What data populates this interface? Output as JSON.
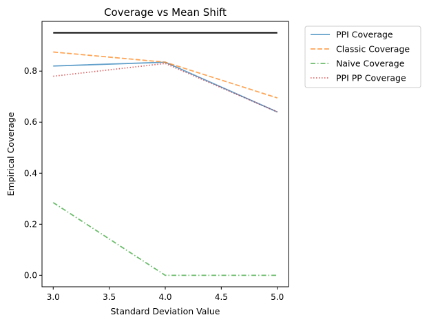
{
  "chart_data": {
    "type": "line",
    "title": "Coverage vs Mean Shift",
    "xlabel": "Standard Deviation Value",
    "ylabel": "Empirical Coverage",
    "x": [
      3.0,
      4.0,
      5.0
    ],
    "xlim": [
      2.9,
      5.1
    ],
    "ylim": [
      -0.045,
      0.995
    ],
    "xticks": [
      "3.0",
      "3.5",
      "4.0",
      "4.5",
      "5.0"
    ],
    "yticks": [
      "0.0",
      "0.2",
      "0.4",
      "0.6",
      "0.8"
    ],
    "grid": false,
    "legend_position": "outside-top-right",
    "reference_line": {
      "y": 0.95,
      "color": "#000000"
    },
    "series": [
      {
        "name": "PPI Coverage",
        "values": [
          0.82,
          0.835,
          0.64
        ],
        "color": "#1f77b4",
        "dash": "solid"
      },
      {
        "name": "Classic Coverage",
        "values": [
          0.875,
          0.835,
          0.695
        ],
        "color": "#ff7f0e",
        "dash": "dashed"
      },
      {
        "name": "Naive Coverage",
        "values": [
          0.285,
          0.0,
          0.0
        ],
        "color": "#2ca02c",
        "dash": "dashdot"
      },
      {
        "name": "PPI PP Coverage",
        "values": [
          0.78,
          0.83,
          0.64
        ],
        "color": "#d62728",
        "dash": "dotted"
      }
    ]
  }
}
